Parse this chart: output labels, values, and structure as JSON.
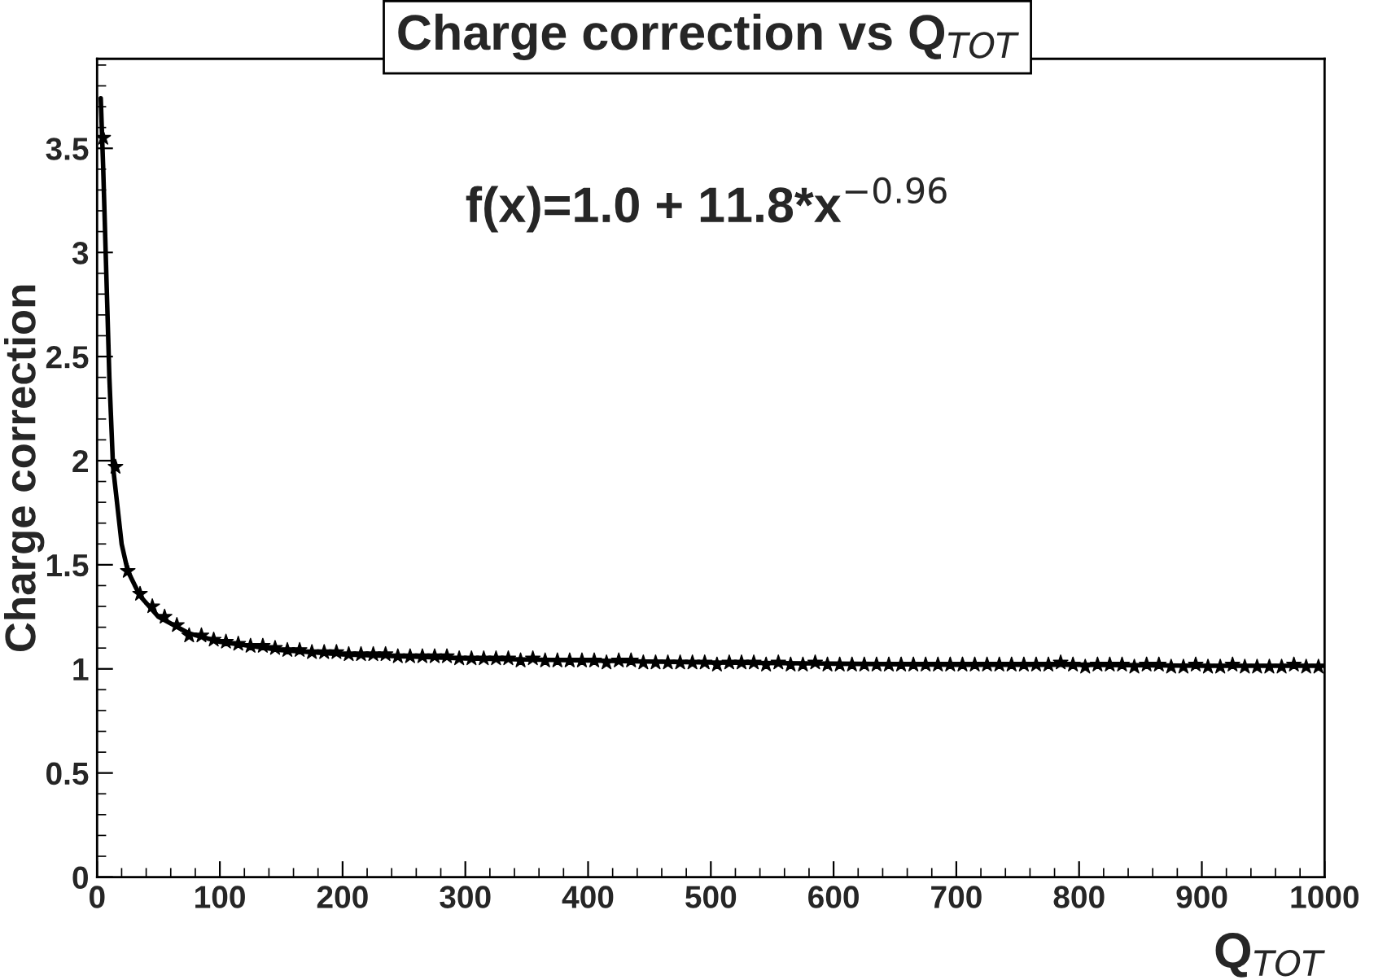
{
  "chart_data": {
    "type": "scatter",
    "title": "Charge correction vs Q$_{TOT}$",
    "xlabel": "Q$_{TOT}$",
    "ylabel": "Charge correction",
    "annotations": [
      "f(x)=1.0 + 11.8*x$^{−0.96}$"
    ],
    "xlim": [
      0,
      1000
    ],
    "ylim": [
      0,
      3.93
    ],
    "xticks": [
      0,
      100,
      200,
      300,
      400,
      500,
      600,
      700,
      800,
      900,
      1000
    ],
    "yticks": [
      0,
      0.5,
      1,
      1.5,
      2,
      2.5,
      3,
      3.5
    ],
    "grid": false,
    "series": [
      {
        "marker": "star",
        "color": "#000000",
        "x": [
          5,
          15,
          25,
          35,
          45,
          55,
          65,
          75,
          85,
          95,
          105,
          115,
          125,
          135,
          145,
          155,
          165,
          175,
          185,
          195,
          205,
          215,
          225,
          235,
          245,
          255,
          265,
          275,
          285,
          295,
          305,
          315,
          325,
          335,
          345,
          355,
          365,
          375,
          385,
          395,
          405,
          415,
          425,
          435,
          445,
          455,
          465,
          475,
          485,
          495,
          505,
          515,
          525,
          535,
          545,
          555,
          565,
          575,
          585,
          595,
          605,
          615,
          625,
          635,
          645,
          655,
          665,
          675,
          685,
          695,
          705,
          715,
          725,
          735,
          745,
          755,
          765,
          775,
          785,
          795,
          805,
          815,
          825,
          835,
          845,
          855,
          865,
          875,
          885,
          895,
          905,
          915,
          925,
          935,
          945,
          955,
          965,
          975,
          985,
          995
        ],
        "values": [
          3.55,
          1.97,
          1.47,
          1.36,
          1.3,
          1.25,
          1.21,
          1.16,
          1.16,
          1.14,
          1.13,
          1.12,
          1.11,
          1.11,
          1.1,
          1.09,
          1.09,
          1.08,
          1.08,
          1.08,
          1.07,
          1.07,
          1.07,
          1.07,
          1.06,
          1.06,
          1.06,
          1.06,
          1.06,
          1.05,
          1.05,
          1.05,
          1.05,
          1.05,
          1.04,
          1.05,
          1.04,
          1.04,
          1.04,
          1.04,
          1.04,
          1.03,
          1.04,
          1.04,
          1.03,
          1.03,
          1.03,
          1.03,
          1.03,
          1.03,
          1.02,
          1.03,
          1.03,
          1.03,
          1.02,
          1.03,
          1.02,
          1.02,
          1.03,
          1.02,
          1.02,
          1.02,
          1.02,
          1.02,
          1.02,
          1.02,
          1.02,
          1.02,
          1.02,
          1.02,
          1.02,
          1.02,
          1.02,
          1.02,
          1.02,
          1.02,
          1.02,
          1.02,
          1.03,
          1.02,
          1.01,
          1.02,
          1.02,
          1.02,
          1.01,
          1.02,
          1.02,
          1.01,
          1.01,
          1.02,
          1.01,
          1.01,
          1.02,
          1.01,
          1.01,
          1.01,
          1.01,
          1.02,
          1.01,
          1.01
        ]
      },
      {
        "type": "line",
        "color": "#000000",
        "line_style": "solid",
        "marker": "none",
        "x": [
          3,
          5,
          8,
          10,
          13,
          20,
          25,
          35,
          50,
          75,
          100,
          150,
          200,
          300,
          400,
          500,
          600,
          700,
          800,
          900,
          1000
        ],
        "values": [
          3.74,
          3.4,
          2.8,
          2.4,
          1.97,
          1.6,
          1.47,
          1.35,
          1.25,
          1.17,
          1.13,
          1.09,
          1.07,
          1.05,
          1.04,
          1.03,
          1.025,
          1.02,
          1.02,
          1.015,
          1.015
        ]
      }
    ]
  }
}
